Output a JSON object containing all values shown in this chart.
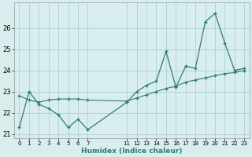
{
  "xlabel": "Humidex (Indice chaleur)",
  "ylabel": "",
  "background_color": "#d8edee",
  "grid_color": "#b0d0d0",
  "line_color": "#2e7d72",
  "xlim": [
    -0.5,
    23.5
  ],
  "ylim": [
    20.8,
    27.2
  ],
  "yticks": [
    21,
    22,
    23,
    24,
    25,
    26
  ],
  "xticks": [
    0,
    1,
    2,
    3,
    4,
    5,
    6,
    7,
    11,
    12,
    13,
    14,
    15,
    16,
    17,
    18,
    19,
    20,
    21,
    22,
    23
  ],
  "xtick_labels": [
    "0",
    "1",
    "2",
    "3",
    "4",
    "5",
    "6",
    "7",
    "11",
    "12",
    "13",
    "14",
    "15",
    "16",
    "17",
    "18",
    "19",
    "20",
    "21",
    "22",
    "23"
  ],
  "series1_x": [
    0,
    1,
    2,
    3,
    4,
    5,
    6,
    7,
    11,
    12,
    13,
    14,
    15,
    16,
    17,
    18,
    19,
    20,
    21,
    22,
    23
  ],
  "series1_y": [
    21.3,
    23.0,
    22.4,
    22.2,
    21.9,
    21.3,
    21.7,
    21.2,
    22.5,
    23.0,
    23.3,
    23.5,
    24.9,
    23.2,
    24.2,
    24.1,
    26.3,
    26.7,
    25.3,
    24.0,
    24.1
  ],
  "series2_x": [
    0,
    1,
    2,
    3,
    4,
    5,
    6,
    7,
    11,
    12,
    13,
    14,
    15,
    16,
    17,
    18,
    19,
    20,
    21,
    22,
    23
  ],
  "series2_y": [
    22.8,
    22.6,
    22.5,
    22.6,
    22.65,
    22.65,
    22.65,
    22.6,
    22.55,
    22.7,
    22.85,
    23.0,
    23.15,
    23.25,
    23.45,
    23.55,
    23.65,
    23.75,
    23.85,
    23.9,
    24.0
  ]
}
